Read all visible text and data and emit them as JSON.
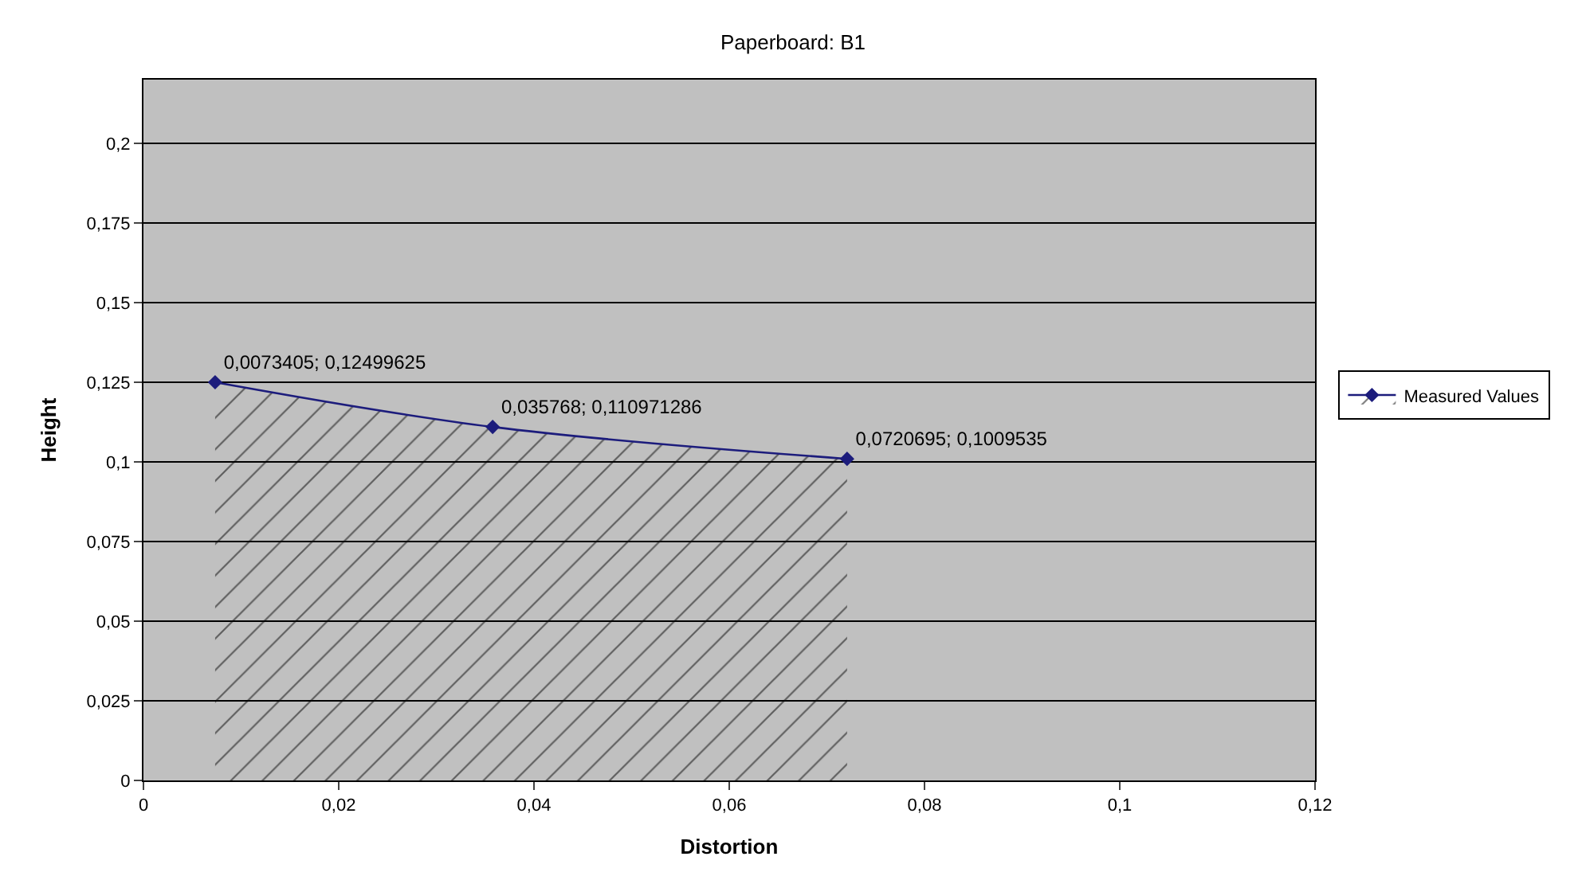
{
  "chart_data": {
    "type": "area",
    "title": "Paperboard: B1",
    "xlabel": "Distortion",
    "ylabel": "Height",
    "x": [
      0.0073405,
      0.035768,
      0.0720695
    ],
    "series": [
      {
        "name": "Measured Values",
        "color": "#1c1c7c",
        "values": [
          0.12499625,
          0.110971286,
          0.1009535
        ],
        "value_labels": [
          "0,0073405; 0,12499625",
          "0,035768; 0,110971286",
          "0,0720695; 0,1009535"
        ]
      }
    ],
    "xlim": [
      0,
      0.12
    ],
    "xticks": [
      {
        "value": 0,
        "label": "0"
      },
      {
        "value": 0.02,
        "label": "0,02"
      },
      {
        "value": 0.04,
        "label": "0,04"
      },
      {
        "value": 0.06,
        "label": "0,06"
      },
      {
        "value": 0.08,
        "label": "0,08"
      },
      {
        "value": 0.1,
        "label": "0,1"
      },
      {
        "value": 0.12,
        "label": "0,12"
      }
    ],
    "ylim": [
      0,
      0.22
    ],
    "yticks": [
      {
        "value": 0,
        "label": "0"
      },
      {
        "value": 0.025,
        "label": "0,025"
      },
      {
        "value": 0.05,
        "label": "0,05"
      },
      {
        "value": 0.075,
        "label": "0,075"
      },
      {
        "value": 0.1,
        "label": "0,1"
      },
      {
        "value": 0.125,
        "label": "0,125"
      },
      {
        "value": 0.15,
        "label": "0,15"
      },
      {
        "value": 0.175,
        "label": "0,175"
      },
      {
        "value": 0.2,
        "label": "0,2"
      }
    ],
    "grid": "y",
    "legend": "right",
    "marker": "diamond",
    "line_style": "solid"
  }
}
